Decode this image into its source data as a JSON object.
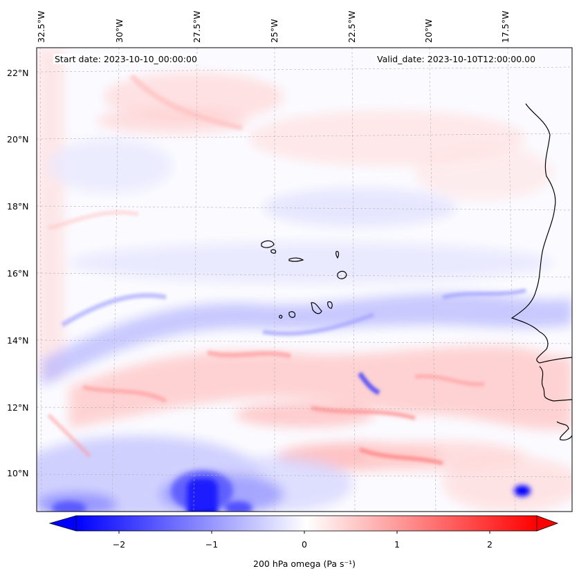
{
  "map": {
    "title_left": "Start date: 2023-10-10_00:00:00",
    "title_right": "Valid_date: 2023-10-10T12:00:00.00",
    "variable": "200 hPa omega",
    "units_label": "200 hPa omega (Pa s⁻¹)",
    "projection": "Lambert Conformal",
    "lon_labels": [
      "32.5°W",
      "30°W",
      "27.5°W",
      "25°W",
      "22.5°W",
      "20°W",
      "17.5°W"
    ],
    "lat_labels": [
      "22°N",
      "20°N",
      "18°N",
      "16°N",
      "14°N",
      "12°N",
      "10°N"
    ]
  },
  "colorbar": {
    "colormap": "bwr",
    "min": -2.7,
    "max": 2.7,
    "extend": "both",
    "tick_labels": [
      "−2",
      "−1",
      "0",
      "1",
      "2"
    ],
    "tick_values": [
      -2,
      -1,
      0,
      1,
      2
    ],
    "color_low": "#0000ff",
    "color_mid": "#ffffff",
    "color_high": "#ff0000"
  },
  "features": {
    "coastline_color": "#000000",
    "gridline_color": "#b0b0b0",
    "islands": "Cape Verde Islands",
    "coast": "West Africa (Senegal, Mauritania)"
  }
}
